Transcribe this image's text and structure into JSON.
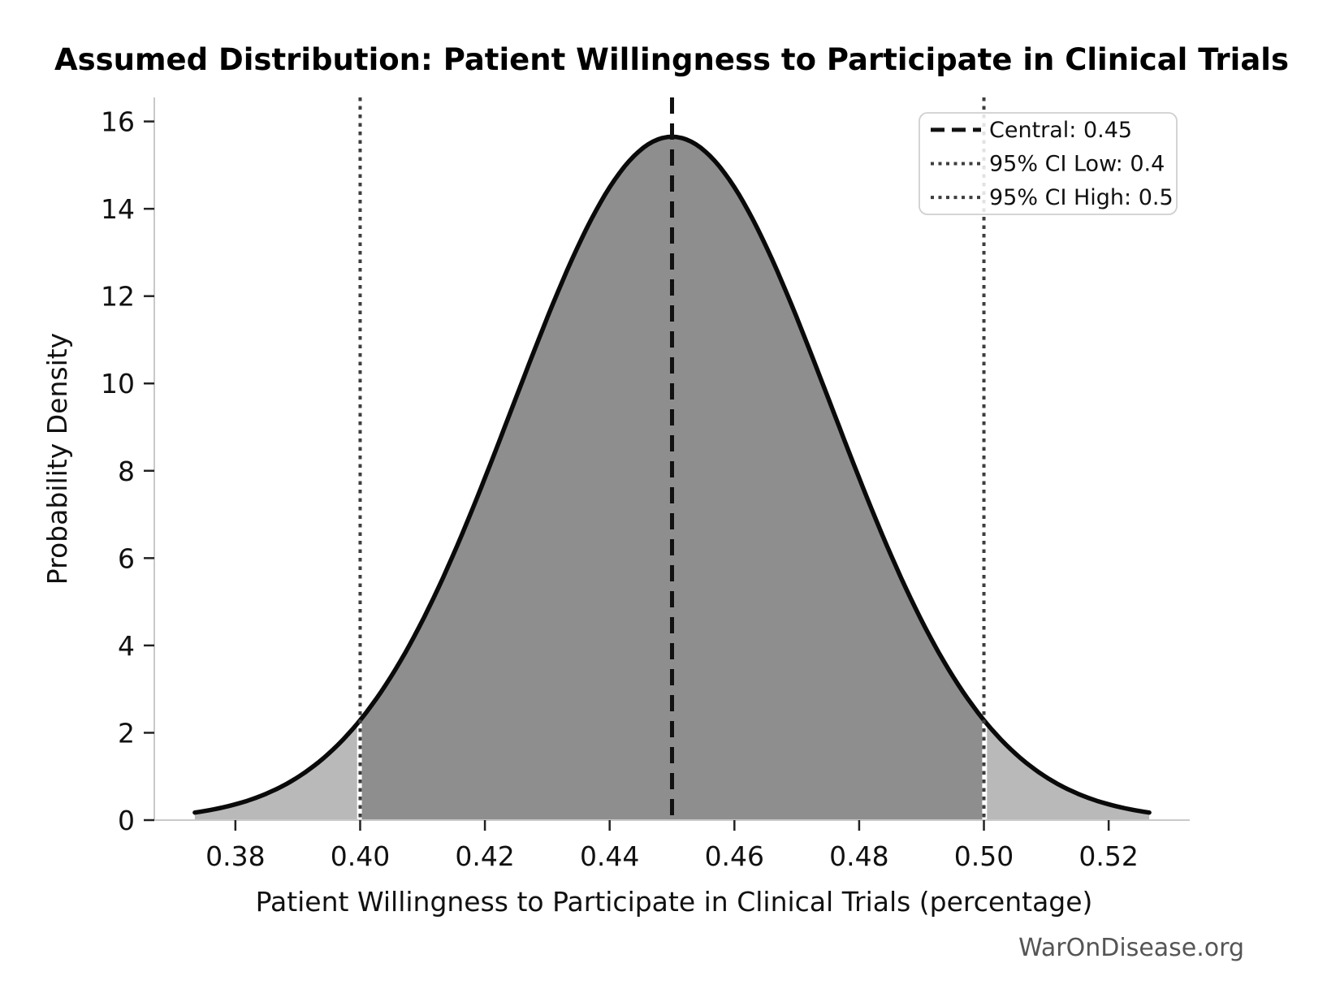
{
  "title": "Assumed Distribution: Patient Willingness to Participate in Clinical Trials",
  "xlabel": "Patient Willingness to Participate in Clinical Trials (percentage)",
  "ylabel": "Probability Density",
  "watermark": "WarOnDisease.org",
  "legend": {
    "position": "top-right",
    "items": [
      {
        "label": "Central: 0.45",
        "style": "dashed",
        "color": "#111111"
      },
      {
        "label": "95% CI Low: 0.4",
        "style": "dotted",
        "color": "#3d3d3d"
      },
      {
        "label": "95% CI High: 0.5",
        "style": "dotted",
        "color": "#3d3d3d"
      }
    ]
  },
  "chart_data": {
    "type": "area",
    "distribution": "normal",
    "mean": 0.45,
    "std": 0.0255,
    "peak_density": 15.65,
    "central": 0.45,
    "ci_low": 0.4,
    "ci_high": 0.5,
    "x_domain": [
      0.3735,
      0.5265
    ],
    "xlim": [
      0.367,
      0.533
    ],
    "ylim": [
      0,
      16.55
    ],
    "x_ticks": [
      0.38,
      0.4,
      0.42,
      0.44,
      0.46,
      0.48,
      0.5,
      0.52
    ],
    "x_tick_labels": [
      "0.38",
      "0.40",
      "0.42",
      "0.44",
      "0.46",
      "0.48",
      "0.50",
      "0.52"
    ],
    "y_ticks": [
      0,
      2,
      4,
      6,
      8,
      10,
      12,
      14,
      16
    ],
    "y_tick_labels": [
      "0",
      "2",
      "4",
      "6",
      "8",
      "10",
      "12",
      "14",
      "16"
    ],
    "grid": false,
    "colors": {
      "curve": "#0a0a0a",
      "fill_tail": "#b9b9b9",
      "fill_ci": "#8e8e8e",
      "central_line": "#111111",
      "ci_line": "#3d3d3d",
      "spine": "#c9c9c9",
      "tick": "#222222",
      "legend_border": "#cfcfcf",
      "watermark": "#555555"
    }
  }
}
